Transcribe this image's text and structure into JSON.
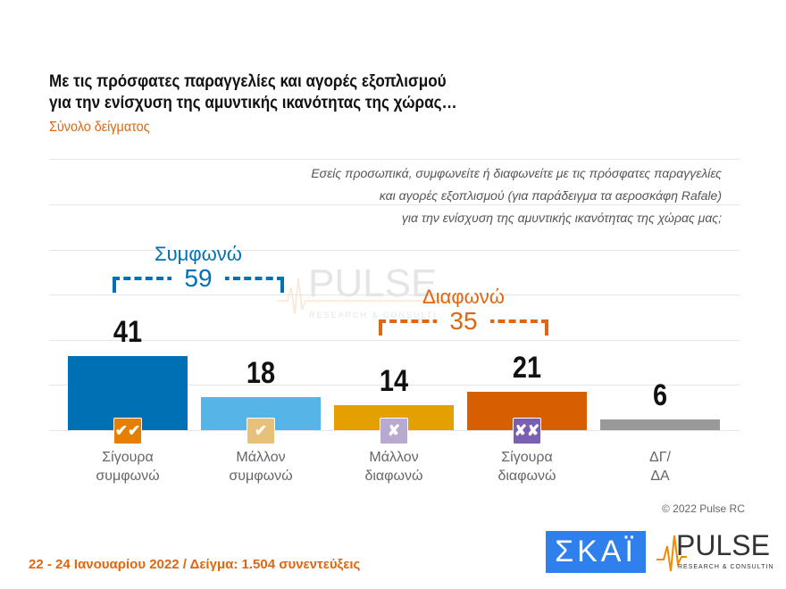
{
  "header": {
    "title_line1": "Με τις πρόσφατες παραγγελίες και αγορές εξοπλισμού",
    "title_line2": "για την ενίσχυση της αμυντικής ικανότητας της χώρας…",
    "subtitle": "Σύνολο δείγματος"
  },
  "question": [
    "Εσείς προσωπικά, συμφωνείτε ή διαφωνείτε με τις πρόσφατες παραγγελίες",
    "και αγορές εξοπλισμού (για παράδειγμα τα αεροσκάφη Rafale)",
    "για την ενίσχυση της αμυντικής ικανότητας της χώρας μας;"
  ],
  "chart_data": {
    "type": "bar",
    "categories": [
      "Σίγουρα συμφωνώ",
      "Μάλλον συμφωνώ",
      "Μάλλον διαφωνώ",
      "Σίγουρα διαφωνώ",
      "ΔΓ/ ΔΑ"
    ],
    "category_lines": [
      [
        "Σίγουρα",
        "συμφωνώ"
      ],
      [
        "Μάλλον",
        "συμφωνώ"
      ],
      [
        "Μάλλον",
        "διαφωνώ"
      ],
      [
        "Σίγουρα",
        "διαφωνώ"
      ],
      [
        "ΔΓ/",
        "ΔΑ"
      ]
    ],
    "values": [
      41,
      18,
      14,
      21,
      6
    ],
    "colors": [
      "#0070b4",
      "#56b4e6",
      "#e3a000",
      "#d65f00",
      "#999999"
    ],
    "badges": [
      "✔✔",
      "✔",
      "✘",
      "✘✘",
      ""
    ],
    "badge_colors": [
      "#e67e00",
      "#e8c07a",
      "#b7a9cf",
      "#7b5fb0",
      ""
    ],
    "groups": [
      {
        "label": "Συμφωνώ",
        "value": "59",
        "color": "#0070b4"
      },
      {
        "label": "Διαφωνώ",
        "value": "35",
        "color": "#e0660f"
      }
    ],
    "grid": true
  },
  "footer": {
    "text": "22 - 24 Ιανουαρίου  2022  /  Δείγμα:  1.504 συνεντεύξεις",
    "copyright": "© 2022 Pulse RC"
  },
  "logos": {
    "skai": "ΣΚΑΪ",
    "pulse": "PULSE",
    "pulse_sub": "RESEARCH & CONSULTING"
  }
}
